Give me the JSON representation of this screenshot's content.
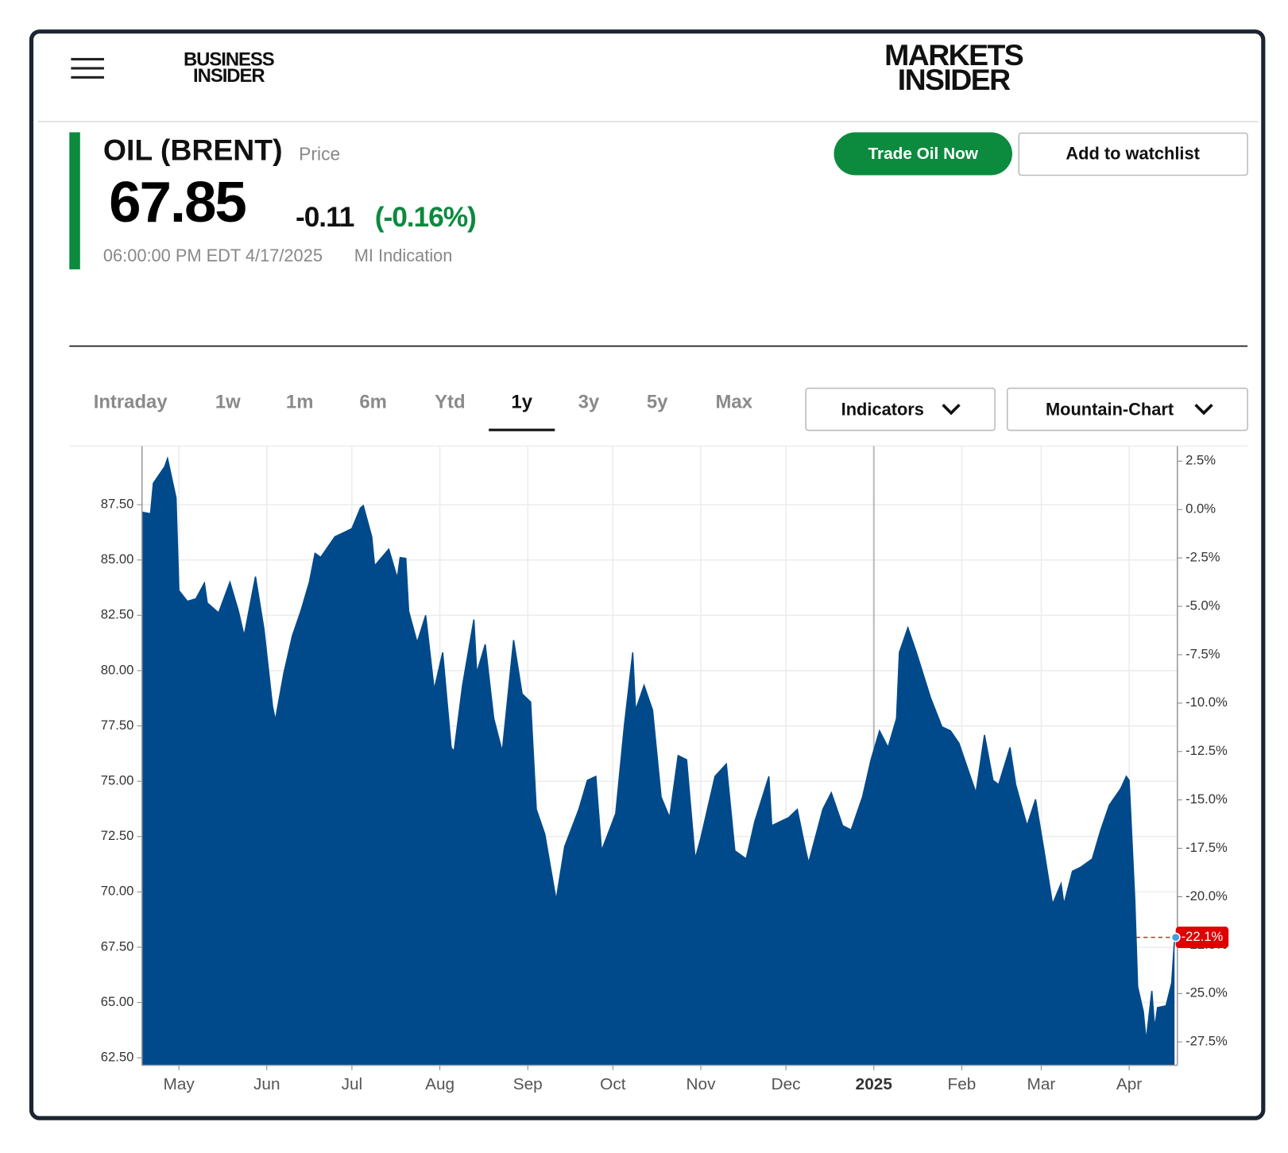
{
  "header": {
    "logo_left": [
      "BUSINESS",
      "INSIDER"
    ],
    "logo_right": [
      "MARKETS",
      "INSIDER"
    ]
  },
  "quote": {
    "name": "OIL (BRENT)",
    "type": "Price",
    "price": "67.85",
    "change": "-0.11",
    "change_pct": "(-0.16%)",
    "timestamp": "06:00:00 PM EDT 4/17/2025",
    "source": "MI Indication"
  },
  "buttons": [
    "Trade Oil Now",
    "Add to watchlist"
  ],
  "tabs": {
    "items": [
      "Intraday",
      "1w",
      "1m",
      "6m",
      "Ytd",
      "1y",
      "3y",
      "5y",
      "Max"
    ],
    "active": 5
  },
  "dropdowns": [
    "Indicators",
    "Mountain-Chart"
  ],
  "chart_data": {
    "type": "area",
    "color": "#004a8b",
    "x": [
      0,
      3,
      4,
      8,
      9,
      12,
      13,
      16,
      19,
      22,
      23,
      27,
      31,
      34,
      36,
      40,
      43,
      46,
      47,
      50,
      53,
      56,
      59,
      61,
      63,
      68,
      71,
      74,
      77,
      78,
      81,
      82,
      87,
      90,
      91,
      93,
      94,
      97,
      100,
      103,
      106,
      109,
      110,
      113,
      117,
      118,
      121,
      124,
      127,
      131,
      134,
      137,
      139,
      142,
      146,
      149,
      154,
      157,
      160,
      162,
      167,
      170,
      173,
      174,
      177,
      180,
      183,
      186,
      189,
      192,
      195,
      197,
      202,
      206,
      209,
      213,
      216,
      221,
      222,
      228,
      231,
      234,
      235,
      240,
      243,
      247,
      250,
      254,
      257,
      260,
      263,
      266,
      267,
      270,
      273,
      278,
      282,
      285,
      288,
      292,
      294,
      297,
      300,
      302,
      306,
      308,
      312,
      315,
      318,
      321,
      324,
      325,
      328,
      331,
      335,
      338,
      341,
      345,
      347,
      348,
      350,
      351,
      353,
      354,
      356,
      357,
      358,
      361,
      363,
      364
    ],
    "values": [
      87.16,
      87.09,
      88.47,
      89.22,
      89.59,
      87.8,
      83.62,
      83.13,
      83.25,
      83.96,
      83.06,
      82.61,
      84.0,
      82.69,
      81.57,
      84.25,
      81.87,
      78.4,
      77.76,
      79.89,
      81.57,
      82.69,
      84.0,
      85.3,
      85.12,
      86.05,
      86.23,
      86.42,
      87.35,
      87.46,
      86.05,
      84.74,
      85.49,
      84.18,
      85.11,
      85.07,
      82.69,
      81.27,
      82.5,
      79.14,
      80.82,
      76.53,
      76.34,
      79.33,
      82.31,
      79.89,
      81.19,
      77.84,
      76.34,
      81.38,
      78.95,
      78.58,
      73.73,
      72.61,
      69.63,
      72.05,
      73.73,
      75.04,
      75.22,
      71.86,
      73.54,
      77.46,
      80.82,
      78.21,
      79.33,
      78.21,
      74.29,
      73.36,
      76.16,
      75.97,
      71.49,
      72.43,
      75.22,
      75.78,
      71.86,
      71.49,
      73.17,
      75.22,
      72.99,
      73.36,
      73.73,
      71.86,
      71.31,
      73.73,
      74.48,
      72.99,
      72.8,
      74.29,
      75.97,
      77.28,
      76.53,
      77.84,
      80.82,
      81.94,
      80.82,
      78.77,
      77.46,
      77.28,
      76.72,
      75.22,
      74.48,
      77.09,
      75.04,
      74.85,
      76.53,
      74.85,
      72.99,
      74.18,
      71.86,
      69.44,
      70.37,
      69.44,
      70.93,
      71.12,
      71.49,
      72.8,
      73.92,
      74.66,
      75.22,
      75.04,
      69.63,
      65.71,
      64.59,
      63.28,
      65.52,
      63.84,
      64.77,
      64.85,
      65.89,
      67.85
    ],
    "xlim": [
      0,
      365
    ],
    "xticks": [
      {
        "value": 13,
        "label": "May"
      },
      {
        "value": 44,
        "label": "Jun"
      },
      {
        "value": 74,
        "label": "Jul"
      },
      {
        "value": 105,
        "label": "Aug"
      },
      {
        "value": 136,
        "label": "Sep"
      },
      {
        "value": 166,
        "label": "Oct"
      },
      {
        "value": 197,
        "label": "Nov"
      },
      {
        "value": 227,
        "label": "Dec"
      },
      {
        "value": 258,
        "label": "2025"
      },
      {
        "value": 289,
        "label": "Feb"
      },
      {
        "value": 317,
        "label": "Mar"
      },
      {
        "value": 348,
        "label": "Apr"
      }
    ],
    "ylim": [
      62.16,
      90.15
    ],
    "yticks": [
      {
        "value": 62.5,
        "label": "62.50"
      },
      {
        "value": 65,
        "label": "65.00"
      },
      {
        "value": 67.5,
        "label": "67.50"
      },
      {
        "value": 70,
        "label": "70.00"
      },
      {
        "value": 72.5,
        "label": "72.50"
      },
      {
        "value": 75,
        "label": "75.00"
      },
      {
        "value": 77.5,
        "label": "77.50"
      },
      {
        "value": 80,
        "label": "80.00"
      },
      {
        "value": 82.5,
        "label": "82.50"
      },
      {
        "value": 85,
        "label": "85.00"
      },
      {
        "value": 87.5,
        "label": "87.50"
      }
    ],
    "y2lim": [
      -28.71,
      3.28
    ],
    "y2ticks": [
      {
        "value": -27.5,
        "label": "-27.5%"
      },
      {
        "value": -25,
        "label": "-25.0%"
      },
      {
        "value": -22.5,
        "label": "-22.5%"
      },
      {
        "value": -20,
        "label": "-20.0%"
      },
      {
        "value": -17.5,
        "label": "-17.5%"
      },
      {
        "value": -15,
        "label": "-15.0%"
      },
      {
        "value": -12.5,
        "label": "-12.5%"
      },
      {
        "value": -10,
        "label": "-10.0%"
      },
      {
        "value": -7.5,
        "label": "-7.5%"
      },
      {
        "value": -5,
        "label": "-5.0%"
      },
      {
        "value": -2.5,
        "label": "-2.5%"
      },
      {
        "value": 0,
        "label": "0.0%"
      },
      {
        "value": 2.5,
        "label": "2.5%"
      }
    ],
    "marker": {
      "value": -22.1,
      "label": "-22.1%"
    },
    "grid": true
  }
}
